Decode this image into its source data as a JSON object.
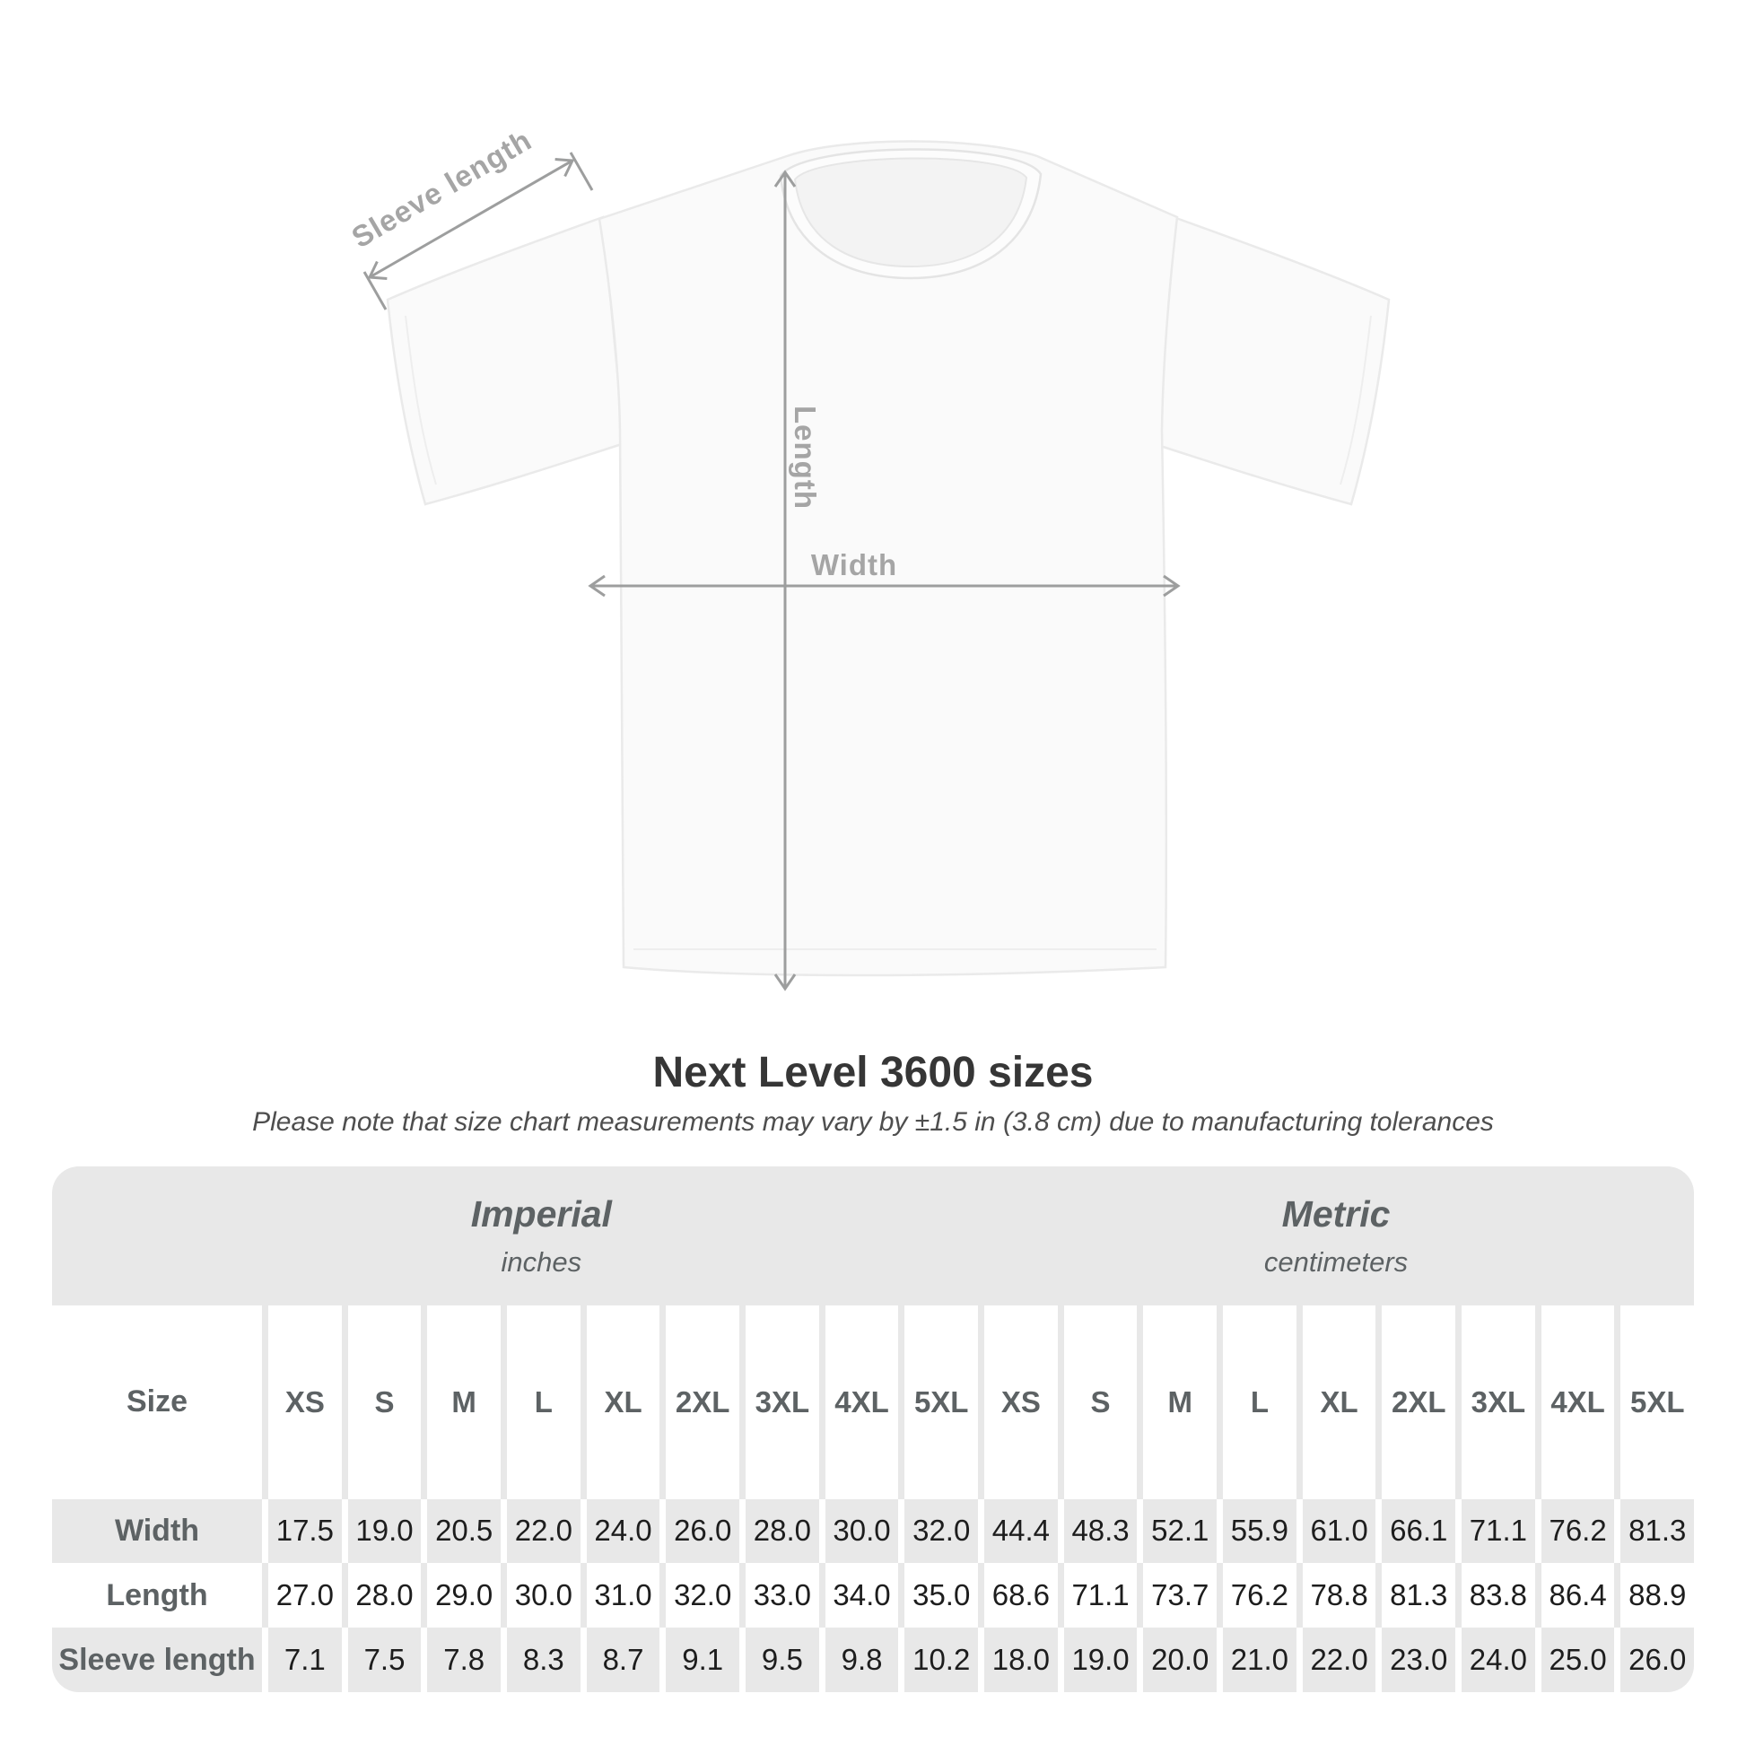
{
  "diagram": {
    "sleeve_label": "Sleeve length",
    "length_label": "Length",
    "width_label": "Width",
    "line_color": "#9d9e9e",
    "label_color": "#a5a5a5"
  },
  "title": "Next Level 3600 sizes",
  "subtitle": "Please note that size chart measurements may vary by ±1.5 in (3.8 cm) due to manufacturing tolerances",
  "table": {
    "groups": [
      {
        "label": "Imperial",
        "sublabel": "inches"
      },
      {
        "label": "Metric",
        "sublabel": "centimeters"
      }
    ],
    "corner_header": "Size",
    "sizes": [
      "XS",
      "S",
      "M",
      "L",
      "XL",
      "2XL",
      "3XL",
      "4XL",
      "5XL"
    ],
    "rows": [
      {
        "label": "Width",
        "imperial": [
          "17.5",
          "19.0",
          "20.5",
          "22.0",
          "24.0",
          "26.0",
          "28.0",
          "30.0",
          "32.0"
        ],
        "metric": [
          "44.4",
          "48.3",
          "52.1",
          "55.9",
          "61.0",
          "66.1",
          "71.1",
          "76.2",
          "81.3"
        ]
      },
      {
        "label": "Length",
        "imperial": [
          "27.0",
          "28.0",
          "29.0",
          "30.0",
          "31.0",
          "32.0",
          "33.0",
          "34.0",
          "35.0"
        ],
        "metric": [
          "68.6",
          "71.1",
          "73.7",
          "76.2",
          "78.8",
          "81.3",
          "83.8",
          "86.4",
          "88.9"
        ]
      },
      {
        "label": "Sleeve length",
        "imperial": [
          "7.1",
          "7.5",
          "7.8",
          "8.3",
          "8.7",
          "9.1",
          "9.5",
          "9.8",
          "10.2"
        ],
        "metric": [
          "18.0",
          "19.0",
          "20.0",
          "21.0",
          "22.0",
          "23.0",
          "24.0",
          "25.0",
          "26.0"
        ]
      }
    ],
    "colors": {
      "band": "#e8e8e8",
      "cell_light": "#ffffff",
      "header_text": "#5d6264",
      "value_text": "#1d1d1d"
    }
  },
  "chart_data": {
    "type": "table",
    "title": "Next Level 3600 sizes",
    "note": "Please note that size chart measurements may vary by ±1.5 in (3.8 cm) due to manufacturing tolerances",
    "row_labels": [
      "Width",
      "Length",
      "Sleeve length"
    ],
    "unit_systems": [
      {
        "name": "Imperial",
        "unit": "inches",
        "sizes": [
          "XS",
          "S",
          "M",
          "L",
          "XL",
          "2XL",
          "3XL",
          "4XL",
          "5XL"
        ],
        "measurements": {
          "Width": [
            17.5,
            19.0,
            20.5,
            22.0,
            24.0,
            26.0,
            28.0,
            30.0,
            32.0
          ],
          "Length": [
            27.0,
            28.0,
            29.0,
            30.0,
            31.0,
            32.0,
            33.0,
            34.0,
            35.0
          ],
          "Sleeve length": [
            7.1,
            7.5,
            7.8,
            8.3,
            8.7,
            9.1,
            9.5,
            9.8,
            10.2
          ]
        }
      },
      {
        "name": "Metric",
        "unit": "centimeters",
        "sizes": [
          "XS",
          "S",
          "M",
          "L",
          "XL",
          "2XL",
          "3XL",
          "4XL",
          "5XL"
        ],
        "measurements": {
          "Width": [
            44.4,
            48.3,
            52.1,
            55.9,
            61.0,
            66.1,
            71.1,
            76.2,
            81.3
          ],
          "Length": [
            68.6,
            71.1,
            73.7,
            76.2,
            78.8,
            81.3,
            83.8,
            86.4,
            88.9
          ],
          "Sleeve length": [
            18.0,
            19.0,
            20.0,
            21.0,
            22.0,
            23.0,
            24.0,
            25.0,
            26.0
          ]
        }
      }
    ]
  }
}
